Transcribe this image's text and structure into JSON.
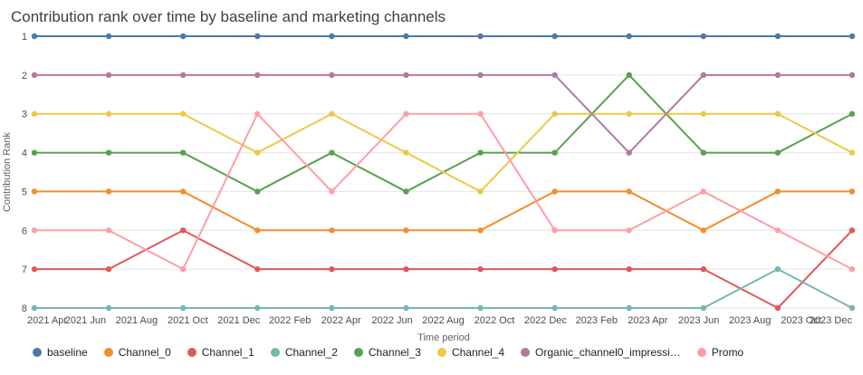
{
  "chart_data": {
    "type": "line",
    "title": "Contribution rank over time by baseline and marketing channels",
    "xlabel": "Time period",
    "ylabel": "Contribution Rank",
    "ylim": [
      1,
      8
    ],
    "y_axis": {
      "ticks": [
        1,
        2,
        3,
        4,
        5,
        6,
        7,
        8
      ],
      "inverted": true
    },
    "grid": "horizontal",
    "legend_position": "bottom",
    "x_tick_labels": [
      "2021 Apr",
      "2021 Jun",
      "2021 Aug",
      "2021 Oct",
      "2021 Dec",
      "2022 Feb",
      "2022 Apr",
      "2022 Jun",
      "2022 Aug",
      "2022 Oct",
      "2022 Dec",
      "2023 Feb",
      "2023 Apr",
      "2023 Jun",
      "2023 Aug",
      "2023 Oct",
      "2023 Dec"
    ],
    "x": [
      "2021 Apr",
      "2021 Jul",
      "2021 Oct",
      "2021 Dec",
      "2022 Mar",
      "2022 Jun",
      "2022 Sep",
      "2022 Dec",
      "2023 Mar",
      "2023 Jun",
      "2023 Sep",
      "2023 Dec"
    ],
    "series": [
      {
        "name": "baseline",
        "color": "#4e79a7",
        "values": [
          1,
          1,
          1,
          1,
          1,
          1,
          1,
          1,
          1,
          1,
          1,
          1
        ]
      },
      {
        "name": "Channel_0",
        "color": "#f28e2b",
        "values": [
          5,
          5,
          5,
          6,
          6,
          6,
          6,
          5,
          5,
          6,
          5,
          5
        ]
      },
      {
        "name": "Channel_1",
        "color": "#e15759",
        "values": [
          7,
          7,
          6,
          7,
          7,
          7,
          7,
          7,
          7,
          7,
          8,
          6
        ]
      },
      {
        "name": "Channel_2",
        "color": "#76b7b2",
        "values": [
          8,
          8,
          8,
          8,
          8,
          8,
          8,
          8,
          8,
          8,
          7,
          8
        ]
      },
      {
        "name": "Channel_3",
        "color": "#59a14f",
        "values": [
          4,
          4,
          4,
          5,
          4,
          5,
          4,
          4,
          2,
          4,
          4,
          3
        ]
      },
      {
        "name": "Channel_4",
        "color": "#edc949",
        "values": [
          3,
          3,
          3,
          4,
          3,
          4,
          5,
          3,
          3,
          3,
          3,
          4
        ]
      },
      {
        "name": "Organic_channel0_impressi…",
        "color": "#b07aa1",
        "values": [
          2,
          2,
          2,
          2,
          2,
          2,
          2,
          2,
          4,
          2,
          2,
          2
        ]
      },
      {
        "name": "Promo",
        "color": "#ff9da7",
        "values": [
          6,
          6,
          7,
          3,
          5,
          3,
          3,
          6,
          6,
          5,
          6,
          7
        ]
      }
    ]
  }
}
